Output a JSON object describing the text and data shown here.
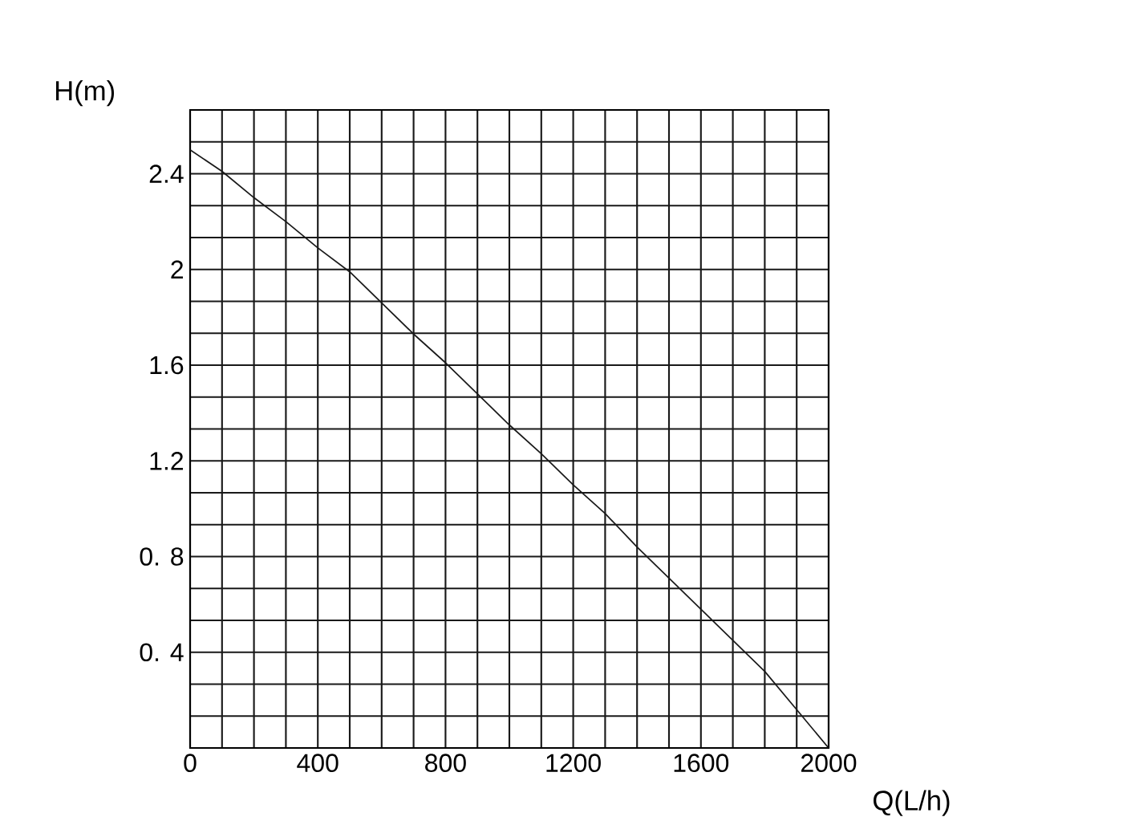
{
  "chart_data": {
    "type": "line",
    "xlabel": "Q(L/h)",
    "ylabel": "H(m)",
    "color": "#1a1a1a",
    "grid": true,
    "x": [
      0,
      100,
      200,
      300,
      400,
      500,
      600,
      700,
      800,
      900,
      1000,
      1100,
      1200,
      1300,
      1400,
      1500,
      1600,
      1700,
      1800,
      1900,
      2000
    ],
    "values": [
      2.5,
      2.41,
      2.3,
      2.2,
      2.09,
      1.99,
      1.86,
      1.73,
      1.61,
      1.48,
      1.35,
      1.23,
      1.1,
      0.98,
      0.84,
      0.71,
      0.58,
      0.45,
      0.32,
      0.16,
      0
    ],
    "xlim": [
      0,
      2000
    ],
    "ylim": [
      0,
      2.6667
    ],
    "xticks": [
      0,
      {
        "value": 100,
        "label": null
      },
      {
        "value": 200,
        "label": null
      },
      {
        "value": 300,
        "label": null
      },
      400,
      {
        "value": 500,
        "label": null
      },
      {
        "value": 600,
        "label": null
      },
      {
        "value": 700,
        "label": null
      },
      800,
      {
        "value": 900,
        "label": null
      },
      {
        "value": 1000,
        "label": null
      },
      {
        "value": 1100,
        "label": null
      },
      1200,
      {
        "value": 1300,
        "label": null
      },
      {
        "value": 1400,
        "label": null
      },
      {
        "value": 1500,
        "label": null
      },
      1600,
      {
        "value": 1700,
        "label": null
      },
      {
        "value": 1800,
        "label": null
      },
      {
        "value": 1900,
        "label": null
      },
      2000
    ],
    "yticks": [
      {
        "value": 0.1333,
        "label": null
      },
      {
        "value": 0.2667,
        "label": null
      },
      {
        "value": 0.4,
        "label": "0. 4"
      },
      {
        "value": 0.5333,
        "label": null
      },
      {
        "value": 0.6667,
        "label": null
      },
      {
        "value": 0.8,
        "label": "0. 8"
      },
      {
        "value": 0.9333,
        "label": null
      },
      {
        "value": 1.0667,
        "label": null
      },
      {
        "value": 1.2,
        "label": "1.2"
      },
      {
        "value": 1.3333,
        "label": null
      },
      {
        "value": 1.4667,
        "label": null
      },
      {
        "value": 1.6,
        "label": "1.6"
      },
      {
        "value": 1.7333,
        "label": null
      },
      {
        "value": 1.8667,
        "label": null
      },
      {
        "value": 2,
        "label": "2"
      },
      {
        "value": 2.1333,
        "label": null
      },
      {
        "value": 2.2667,
        "label": null
      },
      {
        "value": 2.4,
        "label": "2.4"
      },
      {
        "value": 2.5333,
        "label": null
      }
    ]
  }
}
